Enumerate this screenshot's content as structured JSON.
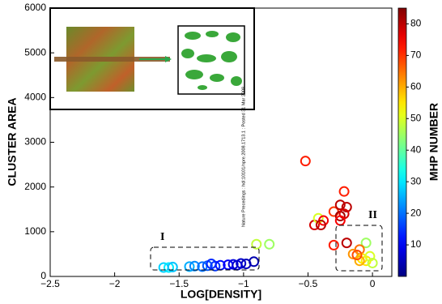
{
  "chart_data": {
    "type": "scatter",
    "xlabel": "LOG[DENSITY]",
    "ylabel": "CLUSTER AREA",
    "clabel": "MHP NUMBER",
    "watermark": "Nature Precedings : hdl:10101/npre.2008.1713.1 : Posted 31 Mar 2008",
    "annotations": [
      "I",
      "II"
    ],
    "xlim": [
      -2.5,
      0.15
    ],
    "ylim": [
      0,
      6000
    ],
    "xticks": [
      {
        "value": -2.5,
        "label": "−2.5"
      },
      {
        "value": -2,
        "label": "−2"
      },
      {
        "value": -1.5,
        "label": "−1.5"
      },
      {
        "value": -1,
        "label": "−1"
      },
      {
        "value": -0.5,
        "label": "−0.5"
      },
      0
    ],
    "yticks": [
      0,
      1000,
      2000,
      3000,
      4000,
      5000,
      6000
    ],
    "colormap": "jet",
    "clim": [
      0,
      85
    ],
    "cticks": [
      10,
      20,
      30,
      40,
      50,
      60,
      70,
      80
    ],
    "x": [
      -1.62,
      -1.58,
      -1.55,
      -1.42,
      -1.38,
      -1.32,
      -1.28,
      -1.22,
      -1.18,
      -1.12,
      -1.08,
      -1.02,
      -0.98,
      -0.92,
      -1.25,
      -1.05,
      -0.9,
      -0.8,
      -0.52,
      -0.45,
      -0.42,
      -0.38,
      -0.4,
      -0.3,
      -0.25,
      -0.22,
      -0.2,
      -0.25,
      -0.22,
      -0.2,
      -0.3,
      -0.25,
      -0.05,
      -0.1,
      -0.15,
      -0.08,
      -0.05,
      -0.02,
      0,
      -0.1,
      -0.12
    ],
    "values": [
      200,
      200,
      210,
      220,
      230,
      220,
      240,
      230,
      250,
      260,
      270,
      290,
      280,
      330,
      280,
      250,
      720,
      720,
      2580,
      1150,
      1300,
      1250,
      1150,
      1450,
      1600,
      1900,
      1550,
      1350,
      1400,
      750,
      700,
      1250,
      750,
      600,
      500,
      400,
      350,
      450,
      300,
      350,
      480
    ],
    "color_values": [
      28,
      30,
      27,
      25,
      22,
      20,
      18,
      15,
      12,
      10,
      8,
      6,
      5,
      4,
      14,
      7,
      48,
      45,
      72,
      78,
      50,
      75,
      80,
      70,
      80,
      72,
      80,
      82,
      78,
      80,
      72,
      75,
      45,
      65,
      62,
      55,
      55,
      50,
      48,
      60,
      68
    ]
  }
}
